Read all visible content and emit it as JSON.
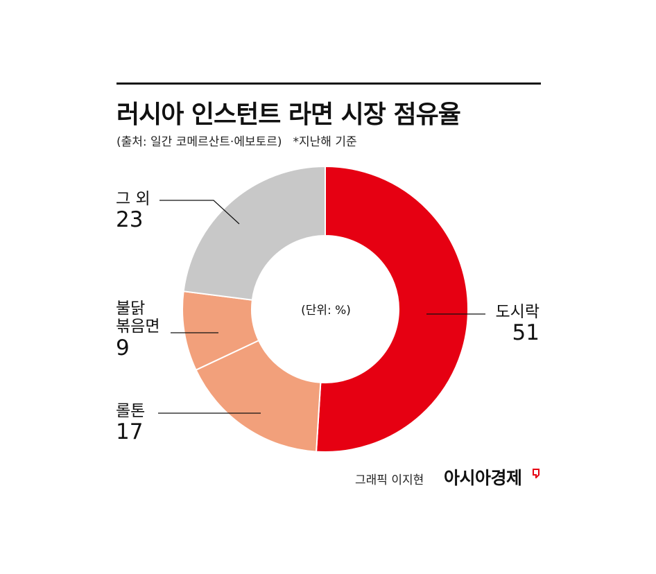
{
  "header": {
    "title": "러시아 인스턴트 라면 시장 점유율",
    "source": "(출처: 일간 코메르산트·에보토르)",
    "note": "*지난해 기준"
  },
  "center_note": "(단위: %)",
  "footer": {
    "credit": "그래픽 이지현",
    "brand": "아시아경제"
  },
  "labels": {
    "dosirak": {
      "name": "도시락",
      "value": "51"
    },
    "rolton": {
      "name": "롤톤",
      "value": "17"
    },
    "buldak": {
      "name_line1": "불닭",
      "name_line2": "볶음면",
      "value": "9"
    },
    "other": {
      "name": "그 외",
      "value": "23"
    }
  },
  "chart_data": {
    "type": "pie",
    "variant": "donut",
    "unit": "%",
    "slices": [
      {
        "label": "도시락",
        "value": 51,
        "color": "#e60012"
      },
      {
        "label": "롤톤",
        "value": 17,
        "color": "#f2a07b"
      },
      {
        "label": "불닭 볶음면",
        "value": 9,
        "color": "#f2a07b"
      },
      {
        "label": "그 외",
        "value": 23,
        "color": "#c8c8c8"
      }
    ]
  }
}
